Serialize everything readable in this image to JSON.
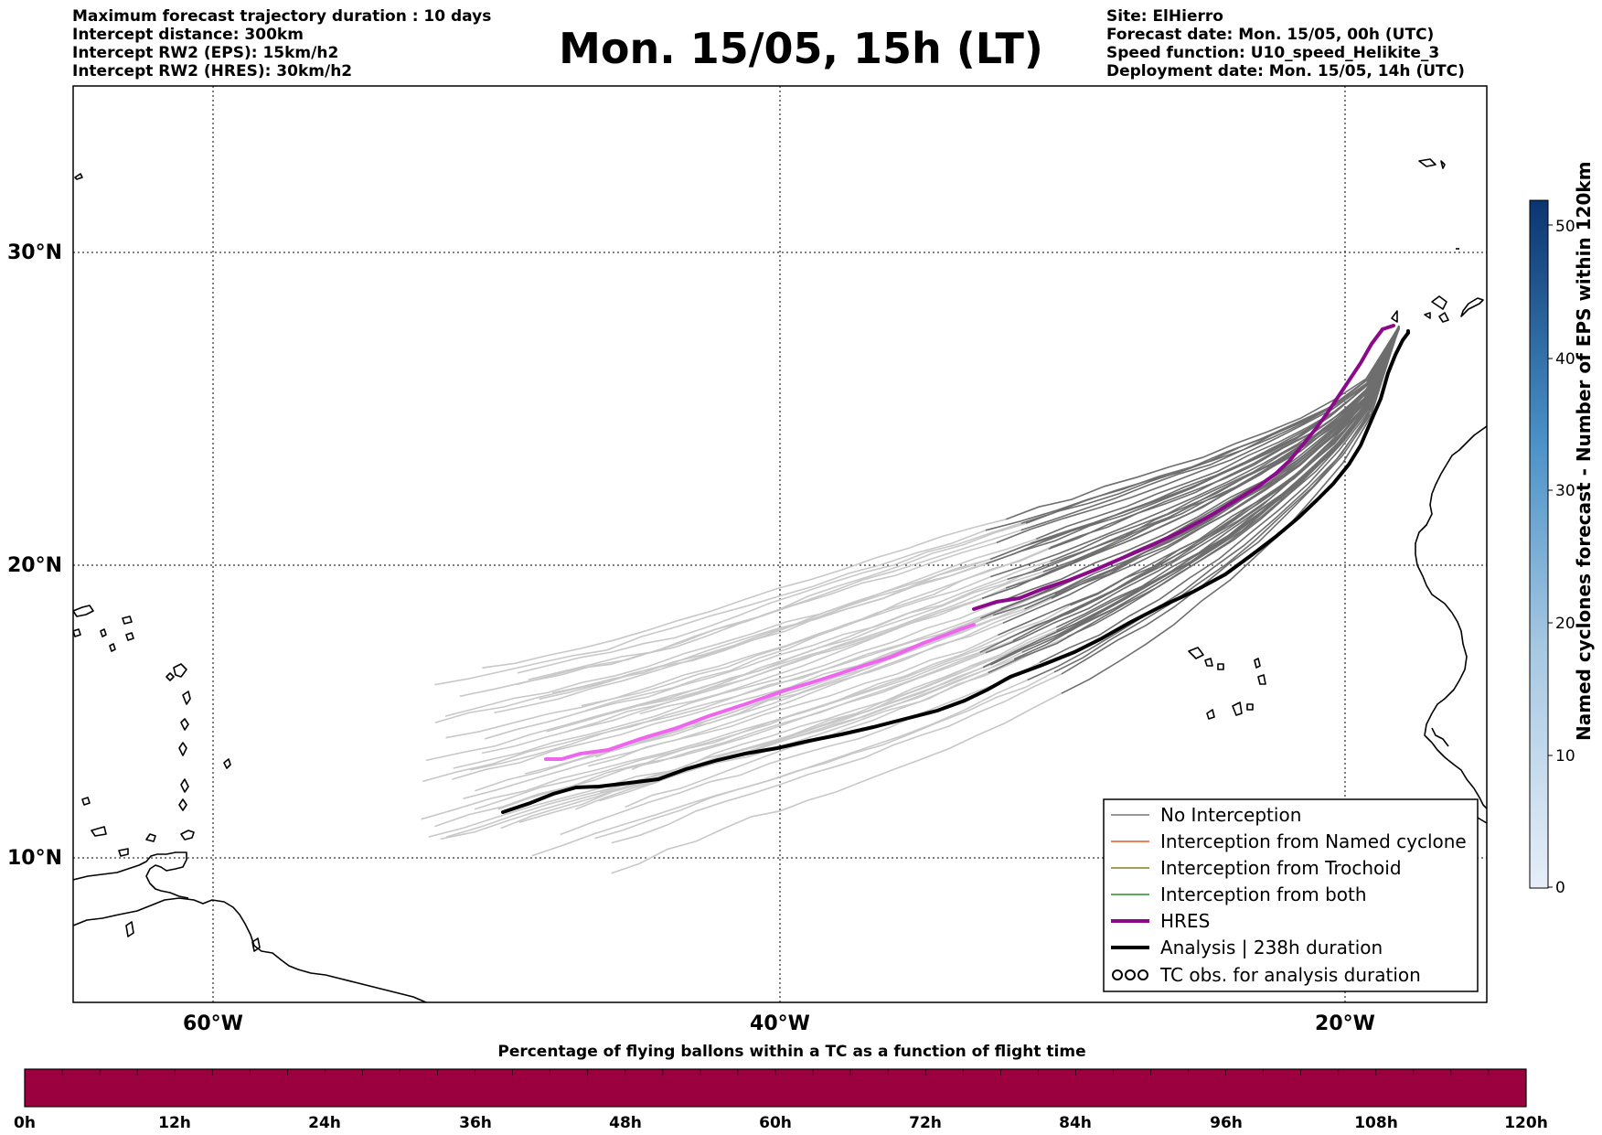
{
  "header": {
    "left_lines": [
      "Maximum forecast trajectory duration : 10 days",
      "Intercept distance: 300km",
      "Intercept RW2 (EPS):  15km/h2",
      "Intercept RW2 (HRES): 30km/h2"
    ],
    "title": "Mon. 15/05, 15h (LT)",
    "right_lines": [
      "Site: ElHierro",
      "Forecast date: Mon. 15/05, 00h (UTC)",
      "Speed function: U10_speed_Helikite_3",
      "Deployment date: Mon. 15/05, 14h (UTC)"
    ]
  },
  "map": {
    "lat_labels": [
      "30°N",
      "20°N",
      "10°N"
    ],
    "lon_labels": [
      "60°W",
      "40°W",
      "20°W"
    ],
    "legend": [
      {
        "label": "No Interception",
        "color": "#777777",
        "style": "thin"
      },
      {
        "label": "Interception from Named cyclone",
        "color": "#e8561e",
        "style": "thin"
      },
      {
        "label": "Interception from Trochoid",
        "color": "#808020",
        "style": "thin"
      },
      {
        "label": "Interception from both",
        "color": "#2a8a2a",
        "style": "thin"
      },
      {
        "label": "HRES",
        "color": "#8b0a8b",
        "style": "thick"
      },
      {
        "label": "Analysis | 238h duration",
        "color": "#000000",
        "style": "thick"
      },
      {
        "label": "TC obs. for analysis duration",
        "color": "#000000",
        "style": "symbol"
      }
    ],
    "colors": {
      "ensemble_near": "#6e6e6e",
      "ensemble_far": "#c8c8c8",
      "hres_far": "#ee66ee",
      "hres_near": "#8b0a8b",
      "analysis": "#000000"
    }
  },
  "colorbar_right": {
    "label": "Named cyclones forecast - Number of EPS within 120km",
    "ticks": [
      "50",
      "40",
      "30",
      "20",
      "10",
      "0"
    ],
    "color_top": "#0a3570",
    "color_bottom": "#e6eef8"
  },
  "colorbar_bottom": {
    "title": "Percentage of flying ballons within a TC as a function of flight time",
    "ticks": [
      "0h",
      "12h",
      "24h",
      "36h",
      "48h",
      "60h",
      "72h",
      "84h",
      "96h",
      "108h",
      "120h"
    ],
    "fill_color": "#9b003f"
  }
}
